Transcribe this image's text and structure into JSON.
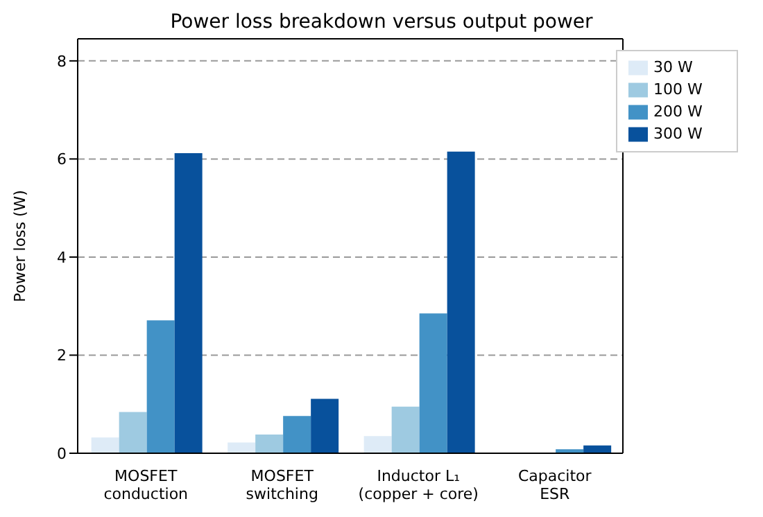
{
  "chart_data": {
    "type": "bar",
    "title": "Power loss breakdown versus output power",
    "ylabel": "Power loss (W)",
    "categories": [
      "MOSFET\nconduction",
      "MOSFET\nswitching",
      "Inductor L₁\n(copper + core)",
      "Capacitor\nESR"
    ],
    "series": [
      {
        "name": "30 W",
        "color": "#deebf7",
        "values": [
          0.32,
          0.22,
          0.35,
          null
        ]
      },
      {
        "name": "100 W",
        "color": "#9ecae1",
        "values": [
          0.84,
          0.38,
          0.95,
          null
        ]
      },
      {
        "name": "200 W",
        "color": "#4292c6",
        "values": [
          2.71,
          0.76,
          2.85,
          0.08
        ]
      },
      {
        "name": "300 W",
        "color": "#08519c",
        "values": [
          6.12,
          1.11,
          6.15,
          0.16
        ]
      }
    ],
    "ylim": [
      0,
      8.45
    ],
    "yticks": [
      0,
      2,
      4,
      6,
      8
    ],
    "grid": "y",
    "legend": "top right"
  }
}
